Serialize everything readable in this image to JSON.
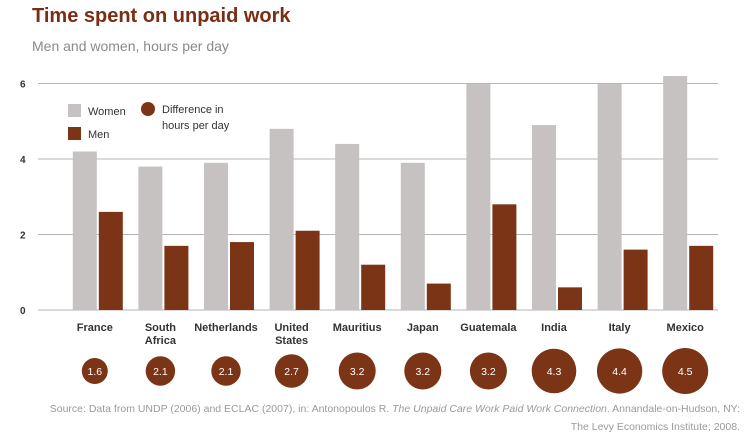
{
  "title": "Time spent on unpaid work",
  "subtitle": "Men and women, hours per day",
  "legend": {
    "women": "Women",
    "men": "Men",
    "difference_line1": "Difference in",
    "difference_line2": "hours per day"
  },
  "colors": {
    "women": "#c5c2c1",
    "men": "#7b3516",
    "circle": "#7b3516",
    "title": "#7b2e14"
  },
  "chart_data": {
    "type": "bar",
    "categories": [
      [
        "France"
      ],
      [
        "South",
        "Africa"
      ],
      [
        "Netherlands"
      ],
      [
        "United",
        "States"
      ],
      [
        "Mauritius"
      ],
      [
        "Japan"
      ],
      [
        "Guatemala"
      ],
      [
        "India"
      ],
      [
        "Italy"
      ],
      [
        "Mexico"
      ]
    ],
    "series": [
      {
        "name": "Women",
        "values": [
          4.2,
          3.8,
          3.9,
          4.8,
          4.4,
          3.9,
          6.0,
          4.9,
          6.0,
          6.2
        ]
      },
      {
        "name": "Men",
        "values": [
          2.6,
          1.7,
          1.8,
          2.1,
          1.2,
          0.7,
          2.8,
          0.6,
          1.6,
          1.7
        ]
      }
    ],
    "difference": [
      1.6,
      2.1,
      2.1,
      2.7,
      3.2,
      3.2,
      3.2,
      4.3,
      4.4,
      4.5
    ],
    "difference_labels": [
      "1.6",
      "2.1",
      "2.1",
      "2.7",
      "3.2",
      "3.2",
      "3.2",
      "4.3",
      "4.4",
      "4.5"
    ],
    "yticks": [
      0,
      2,
      4,
      6
    ],
    "ylim": [
      0,
      6.2
    ],
    "grid": true,
    "legend_position": "top-left"
  },
  "source": {
    "prefix": "Source: Data from UNDP (2006) and ECLAC (2007), in: Antonopoulos R. ",
    "book": "The Unpaid Care Work Paid Work Connection",
    "suffix": ". Annandale-on-Hudson, NY:",
    "line2": "The Levy Economics Institute; 2008."
  }
}
